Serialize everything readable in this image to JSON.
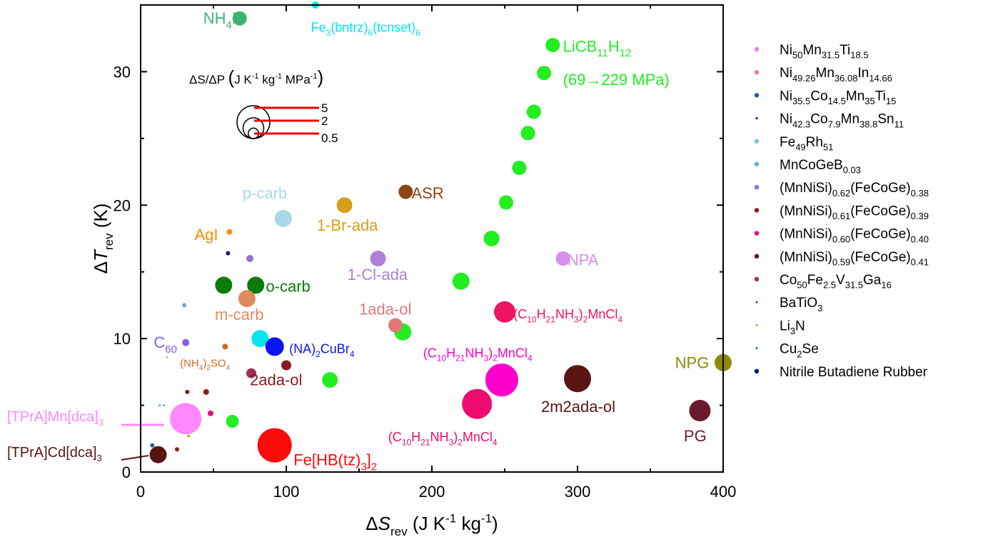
{
  "chart_data": {
    "type": "scatter",
    "xlabel": {
      "parts": [
        {
          "t": "Δ"
        },
        {
          "t": "S",
          "it": true
        },
        {
          "t": "rev",
          "sub": true
        },
        {
          "t": " (J K"
        },
        {
          "t": "-1",
          "sup": true
        },
        {
          "t": " kg"
        },
        {
          "t": "-1",
          "sup": true
        },
        {
          "t": ")"
        }
      ]
    },
    "ylabel": {
      "parts": [
        {
          "t": "Δ"
        },
        {
          "t": "T",
          "it": true
        },
        {
          "t": "rev",
          "sub": true
        },
        {
          "t": " (K)"
        }
      ]
    },
    "xlim": [
      0,
      400
    ],
    "ylim": [
      0,
      35
    ],
    "xticks": [
      0,
      100,
      200,
      300,
      400
    ],
    "yticks": [
      0,
      10,
      20,
      30
    ],
    "size_key": {
      "title": {
        "parts": [
          {
            "t": "ΔS/ΔP "
          },
          {
            "t": "(",
            "big": true
          },
          {
            "t": "J K"
          },
          {
            "t": "-1",
            "sup": true
          },
          {
            "t": " kg"
          },
          {
            "t": "-1",
            "sup": true
          },
          {
            "t": " MPa"
          },
          {
            "t": "-1",
            "sup": true
          },
          {
            "t": ")",
            "big": true
          }
        ]
      },
      "entries": [
        {
          "label": "5",
          "value": 5
        },
        {
          "label": "2",
          "value": 2
        },
        {
          "label": "0.5",
          "value": 0.5
        }
      ]
    },
    "legend_position": "right",
    "legend": [
      {
        "color": "#ee82ee",
        "marker": "dot",
        "parts": [
          {
            "t": "Ni"
          },
          {
            "t": "50",
            "sub": true
          },
          {
            "t": "Mn"
          },
          {
            "t": "31.5",
            "sub": true
          },
          {
            "t": "Ti"
          },
          {
            "t": "18.5",
            "sub": true
          }
        ]
      },
      {
        "color": "#f08080",
        "marker": "dot",
        "parts": [
          {
            "t": "Ni"
          },
          {
            "t": "49.26",
            "sub": true
          },
          {
            "t": "Mn"
          },
          {
            "t": "36.08",
            "sub": true
          },
          {
            "t": "In"
          },
          {
            "t": "14.66",
            "sub": true
          }
        ]
      },
      {
        "color": "#1f5fa8",
        "marker": "dot",
        "parts": [
          {
            "t": "Ni"
          },
          {
            "t": "35.5",
            "sub": true
          },
          {
            "t": "Co"
          },
          {
            "t": "14.5",
            "sub": true
          },
          {
            "t": "Mn"
          },
          {
            "t": "35",
            "sub": true
          },
          {
            "t": "Ti"
          },
          {
            "t": "15",
            "sub": true
          }
        ]
      },
      {
        "color": "#4b0082",
        "marker": "tiny",
        "parts": [
          {
            "t": "Ni"
          },
          {
            "t": "42.3",
            "sub": true
          },
          {
            "t": "Co"
          },
          {
            "t": "7.9",
            "sub": true
          },
          {
            "t": "Mn"
          },
          {
            "t": "38.8",
            "sub": true
          },
          {
            "t": "Sn"
          },
          {
            "t": "11",
            "sub": true
          }
        ]
      },
      {
        "color": "#7fc8c8",
        "marker": "dot",
        "parts": [
          {
            "t": "Fe"
          },
          {
            "t": "49",
            "sub": true
          },
          {
            "t": "Rh"
          },
          {
            "t": "51",
            "sub": true
          }
        ]
      },
      {
        "color": "#6fa8d0",
        "marker": "dot",
        "parts": [
          {
            "t": "MnCoGeB"
          },
          {
            "t": "0.03",
            "sub": true
          }
        ]
      },
      {
        "color": "#9370db",
        "marker": "dot",
        "parts": [
          {
            "t": "(MnNiSi)"
          },
          {
            "t": "0.62",
            "sub": true
          },
          {
            "t": "(FeCoGe)"
          },
          {
            "t": "0.38",
            "sub": true
          }
        ]
      },
      {
        "color": "#8b1a1a",
        "marker": "dot",
        "parts": [
          {
            "t": "(MnNiSi)"
          },
          {
            "t": "0.61",
            "sub": true
          },
          {
            "t": "(FeCoGe)"
          },
          {
            "t": "0.39",
            "sub": true
          }
        ]
      },
      {
        "color": "#e0107a",
        "marker": "dot",
        "parts": [
          {
            "t": "(MnNiSi)"
          },
          {
            "t": "0.60",
            "sub": true
          },
          {
            "t": "(FeCoGe)"
          },
          {
            "t": "0.40",
            "sub": true
          }
        ]
      },
      {
        "color": "#6b0f3a",
        "marker": "dot",
        "parts": [
          {
            "t": "(MnNiSi)"
          },
          {
            "t": "0.59",
            "sub": true
          },
          {
            "t": "(FeCoGe)"
          },
          {
            "t": "0.41",
            "sub": true
          }
        ]
      },
      {
        "color": "#a0305a",
        "marker": "dot",
        "parts": [
          {
            "t": "Co"
          },
          {
            "t": "50",
            "sub": true
          },
          {
            "t": "Fe"
          },
          {
            "t": "2.5",
            "sub": true
          },
          {
            "t": "V"
          },
          {
            "t": "31.5",
            "sub": true
          },
          {
            "t": "Ga"
          },
          {
            "t": "16",
            "sub": true
          }
        ]
      },
      {
        "color": "#a0522d",
        "marker": "tiny",
        "parts": [
          {
            "t": "BaTiO"
          },
          {
            "t": "3",
            "sub": true
          }
        ]
      },
      {
        "color": "#9acd32",
        "marker": "tiny",
        "parts": [
          {
            "t": "Li"
          },
          {
            "t": "3",
            "sub": true
          },
          {
            "t": "N"
          }
        ]
      },
      {
        "color": "#2e8b57",
        "marker": "tiny",
        "parts": [
          {
            "t": "Cu"
          },
          {
            "t": "2",
            "sub": true
          },
          {
            "t": "Se"
          }
        ]
      },
      {
        "color": "#0a1a6e",
        "marker": "dot",
        "parts": [
          {
            "t": "Nitrile Butadiene Rubber"
          }
        ]
      }
    ],
    "points": [
      {
        "x": 68,
        "y": 34,
        "r": 10,
        "color": "#3cb371"
      },
      {
        "x": 120,
        "y": 35,
        "r": 5,
        "color": "#00e5ee"
      },
      {
        "x": 283,
        "y": 32,
        "r": 10,
        "color": "#22ee22"
      },
      {
        "x": 277,
        "y": 29.9,
        "r": 10,
        "color": "#22ee22"
      },
      {
        "x": 270,
        "y": 27,
        "r": 10,
        "color": "#22ee22"
      },
      {
        "x": 266,
        "y": 25.4,
        "r": 10,
        "color": "#22ee22"
      },
      {
        "x": 260,
        "y": 22.8,
        "r": 10,
        "color": "#22ee22"
      },
      {
        "x": 251,
        "y": 20.2,
        "r": 10,
        "color": "#22ee22"
      },
      {
        "x": 241,
        "y": 17.5,
        "r": 11,
        "color": "#22ee22"
      },
      {
        "x": 220,
        "y": 14.3,
        "r": 12,
        "color": "#22ee22"
      },
      {
        "x": 180,
        "y": 10.5,
        "r": 12,
        "color": "#22ee22"
      },
      {
        "x": 130,
        "y": 6.9,
        "r": 11,
        "color": "#22ee22"
      },
      {
        "x": 63,
        "y": 3.8,
        "r": 9,
        "color": "#22ee22"
      },
      {
        "x": 182,
        "y": 21,
        "r": 10,
        "color": "#8b4513"
      },
      {
        "x": 140,
        "y": 20,
        "r": 11,
        "color": "#d4a017"
      },
      {
        "x": 98,
        "y": 19,
        "r": 12,
        "color": "#a8d8ea"
      },
      {
        "x": 61,
        "y": 18,
        "r": 4,
        "color": "#ff8c00"
      },
      {
        "x": 60,
        "y": 16.4,
        "r": 3,
        "color": "#191970"
      },
      {
        "x": 75,
        "y": 16,
        "r": 5,
        "color": "#9370db"
      },
      {
        "x": 163,
        "y": 16,
        "r": 11,
        "color": "#b07fd8"
      },
      {
        "x": 290,
        "y": 16,
        "r": 10,
        "color": "#d88ee8"
      },
      {
        "x": 57,
        "y": 14,
        "r": 12,
        "color": "#0a7a0a"
      },
      {
        "x": 79,
        "y": 14,
        "r": 12,
        "color": "#0a7a0a"
      },
      {
        "x": 73,
        "y": 13,
        "r": 12,
        "color": "#e08a60"
      },
      {
        "x": 30,
        "y": 12.5,
        "r": 3,
        "color": "#6fa8d0"
      },
      {
        "x": 250,
        "y": 12,
        "r": 15,
        "color": "#ee1464"
      },
      {
        "x": 175,
        "y": 11,
        "r": 10,
        "color": "#e07878"
      },
      {
        "x": 82,
        "y": 10,
        "r": 12,
        "color": "#00e5ee"
      },
      {
        "x": 92,
        "y": 9.4,
        "r": 13,
        "color": "#0a14ee"
      },
      {
        "x": 31,
        "y": 9.7,
        "r": 5,
        "color": "#8a5cf0"
      },
      {
        "x": 58,
        "y": 9.4,
        "r": 4,
        "color": "#d2691e"
      },
      {
        "x": 18,
        "y": 8.6,
        "r": 1,
        "color": "#2e8b57"
      },
      {
        "x": 100,
        "y": 8,
        "r": 7,
        "color": "#8b1a1a"
      },
      {
        "x": 76,
        "y": 7.4,
        "r": 7,
        "color": "#a0305a"
      },
      {
        "x": 248,
        "y": 6.9,
        "r": 23,
        "color": "#ff00cc"
      },
      {
        "x": 300,
        "y": 7,
        "r": 19,
        "color": "#5a1414"
      },
      {
        "x": 400,
        "y": 8.2,
        "r": 12,
        "color": "#8a8a00"
      },
      {
        "x": 384,
        "y": 4.6,
        "r": 15,
        "color": "#6b1a2e"
      },
      {
        "x": 231,
        "y": 5.1,
        "r": 21,
        "color": "#ee0a6e"
      },
      {
        "x": 92,
        "y": 2,
        "r": 24,
        "color": "#ff0a0a"
      },
      {
        "x": 31,
        "y": 4,
        "r": 22,
        "color": "#ff88ff"
      },
      {
        "x": 12,
        "y": 1.3,
        "r": 12,
        "color": "#5a1414"
      },
      {
        "x": 32,
        "y": 6,
        "r": 3,
        "color": "#8b1a1a"
      },
      {
        "x": 45,
        "y": 6,
        "r": 4,
        "color": "#8b1a1a"
      },
      {
        "x": 48,
        "y": 4.4,
        "r": 4,
        "color": "#e0107a"
      },
      {
        "x": 25,
        "y": 1.7,
        "r": 3,
        "color": "#8b1a1a"
      },
      {
        "x": 13,
        "y": 5,
        "r": 2,
        "color": "#7fc8c8"
      },
      {
        "x": 16,
        "y": 5,
        "r": 1,
        "color": "#4b0082"
      },
      {
        "x": 8,
        "y": 2,
        "r": 3,
        "color": "#1f5fa8"
      },
      {
        "x": 15,
        "y": 1.4,
        "r": 1,
        "color": "#a0522d"
      },
      {
        "x": 33,
        "y": 2.7,
        "r": 2,
        "color": "#9acd32"
      }
    ],
    "labels": [
      {
        "x": 43,
        "y": 33.6,
        "color": "#3cb371",
        "parts": [
          {
            "t": "NH"
          },
          {
            "t": "4",
            "sub": true
          },
          {
            "t": "I"
          }
        ]
      },
      {
        "x": 117,
        "y": 33.0,
        "color": "#00e5ee",
        "size": 18,
        "parts": [
          {
            "t": "Fe"
          },
          {
            "t": "3",
            "sub": true
          },
          {
            "t": "(bntrz)"
          },
          {
            "t": "6",
            "sub": true
          },
          {
            "t": "(tcnset)"
          },
          {
            "t": "6",
            "sub": true
          }
        ]
      },
      {
        "x": 290,
        "y": 31.5,
        "color": "#22ee22",
        "parts": [
          {
            "t": "LiCB"
          },
          {
            "t": "11",
            "sub": true
          },
          {
            "t": "H"
          },
          {
            "t": "12",
            "sub": true
          }
        ]
      },
      {
        "x": 290,
        "y": 29.0,
        "color": "#22ee22",
        "parts": [
          {
            "t": "(69→229 MPa)"
          }
        ]
      },
      {
        "x": 186,
        "y": 20.5,
        "color": "#8b4513",
        "parts": [
          {
            "t": "ASR"
          }
        ]
      },
      {
        "x": 121,
        "y": 18.1,
        "color": "#d4a017",
        "parts": [
          {
            "t": "1-Br-ada"
          }
        ]
      },
      {
        "x": 70,
        "y": 20.5,
        "color": "#a8d8ea",
        "parts": [
          {
            "t": "p-carb"
          }
        ]
      },
      {
        "x": 37,
        "y": 17.4,
        "color": "#ff8c00",
        "parts": [
          {
            "t": "AgI"
          }
        ]
      },
      {
        "x": 142,
        "y": 14.4,
        "color": "#b07fd8",
        "parts": [
          {
            "t": "1-Cl-ada"
          }
        ]
      },
      {
        "x": 293,
        "y": 15.5,
        "color": "#d88ee8",
        "parts": [
          {
            "t": "NPA"
          }
        ]
      },
      {
        "x": 86,
        "y": 13.5,
        "color": "#0a7a0a",
        "parts": [
          {
            "t": "o-carb"
          }
        ]
      },
      {
        "x": 51,
        "y": 11.4,
        "color": "#e08a60",
        "parts": [
          {
            "t": "m-carb"
          }
        ]
      },
      {
        "x": 150,
        "y": 11.8,
        "color": "#e07878",
        "parts": [
          {
            "t": "1ada-ol"
          }
        ]
      },
      {
        "x": 256,
        "y": 11.5,
        "color": "#ee1464",
        "size": 18,
        "parts": [
          {
            "t": "(C"
          },
          {
            "t": "10",
            "sub": true
          },
          {
            "t": "H"
          },
          {
            "t": "21",
            "sub": true
          },
          {
            "t": "NH"
          },
          {
            "t": "3",
            "sub": true
          },
          {
            "t": ")"
          },
          {
            "t": "2",
            "sub": true
          },
          {
            "t": "MnCl"
          },
          {
            "t": "4",
            "sub": true
          }
        ]
      },
      {
        "x": 9,
        "y": 9.3,
        "color": "#8a5cf0",
        "parts": [
          {
            "t": "C"
          },
          {
            "t": "60",
            "sub": true
          }
        ]
      },
      {
        "x": 102,
        "y": 8.9,
        "color": "#0a14ee",
        "size": 18,
        "parts": [
          {
            "t": "(NA)"
          },
          {
            "t": "2",
            "sub": true
          },
          {
            "t": "CuBr"
          },
          {
            "t": "4",
            "sub": true
          }
        ]
      },
      {
        "x": 194,
        "y": 8.6,
        "color": "#ff00cc",
        "size": 18,
        "parts": [
          {
            "t": "(C"
          },
          {
            "t": "10",
            "sub": true
          },
          {
            "t": "H"
          },
          {
            "t": "21",
            "sub": true
          },
          {
            "t": "NH"
          },
          {
            "t": "3",
            "sub": true
          },
          {
            "t": ")"
          },
          {
            "t": "2",
            "sub": true
          },
          {
            "t": "MnCl"
          },
          {
            "t": "4",
            "sub": true
          }
        ]
      },
      {
        "x": 27,
        "y": 7.9,
        "color": "#d2691e",
        "size": 15,
        "parts": [
          {
            "t": "(NH"
          },
          {
            "t": "4",
            "sub": true
          },
          {
            "t": ")"
          },
          {
            "t": "2",
            "sub": true
          },
          {
            "t": "SO"
          },
          {
            "t": "4",
            "sub": true
          }
        ]
      },
      {
        "x": 75,
        "y": 6.5,
        "color": "#8b1a1a",
        "parts": [
          {
            "t": "2ada-ol"
          }
        ]
      },
      {
        "x": 367,
        "y": 7.8,
        "color": "#8a8a00",
        "parts": [
          {
            "t": "NPG"
          }
        ]
      },
      {
        "x": 275,
        "y": 4.5,
        "color": "#5a1414",
        "parts": [
          {
            "t": "2m2ada-ol"
          }
        ]
      },
      {
        "x": 373,
        "y": 2.3,
        "color": "#6b1a2e",
        "parts": [
          {
            "t": "PG"
          }
        ]
      },
      {
        "x": 170,
        "y": 2.3,
        "color": "#ee0a6e",
        "size": 18,
        "parts": [
          {
            "t": "(C"
          },
          {
            "t": "10",
            "sub": true
          },
          {
            "t": "H"
          },
          {
            "t": "21",
            "sub": true
          },
          {
            "t": "NH"
          },
          {
            "t": "3",
            "sub": true
          },
          {
            "t": ")"
          },
          {
            "t": "2",
            "sub": true
          },
          {
            "t": "MnCl"
          },
          {
            "t": "4",
            "sub": true
          }
        ]
      },
      {
        "x": 105,
        "y": 0.5,
        "color": "#ff0a0a",
        "parts": [
          {
            "t": "Fe[HB(tz)"
          },
          {
            "t": "3",
            "sub": true
          },
          {
            "t": "]"
          },
          {
            "t": "2",
            "sub": true
          }
        ]
      }
    ],
    "outside_labels": [
      {
        "color": "#ff88ff",
        "parts": [
          {
            "t": "[TPrA]Mn[dca]"
          },
          {
            "t": "3",
            "sub": true
          }
        ]
      },
      {
        "color": "#5a1414",
        "parts": [
          {
            "t": "[TPrA]Cd[dca]"
          },
          {
            "t": "3",
            "sub": true
          }
        ]
      }
    ]
  }
}
